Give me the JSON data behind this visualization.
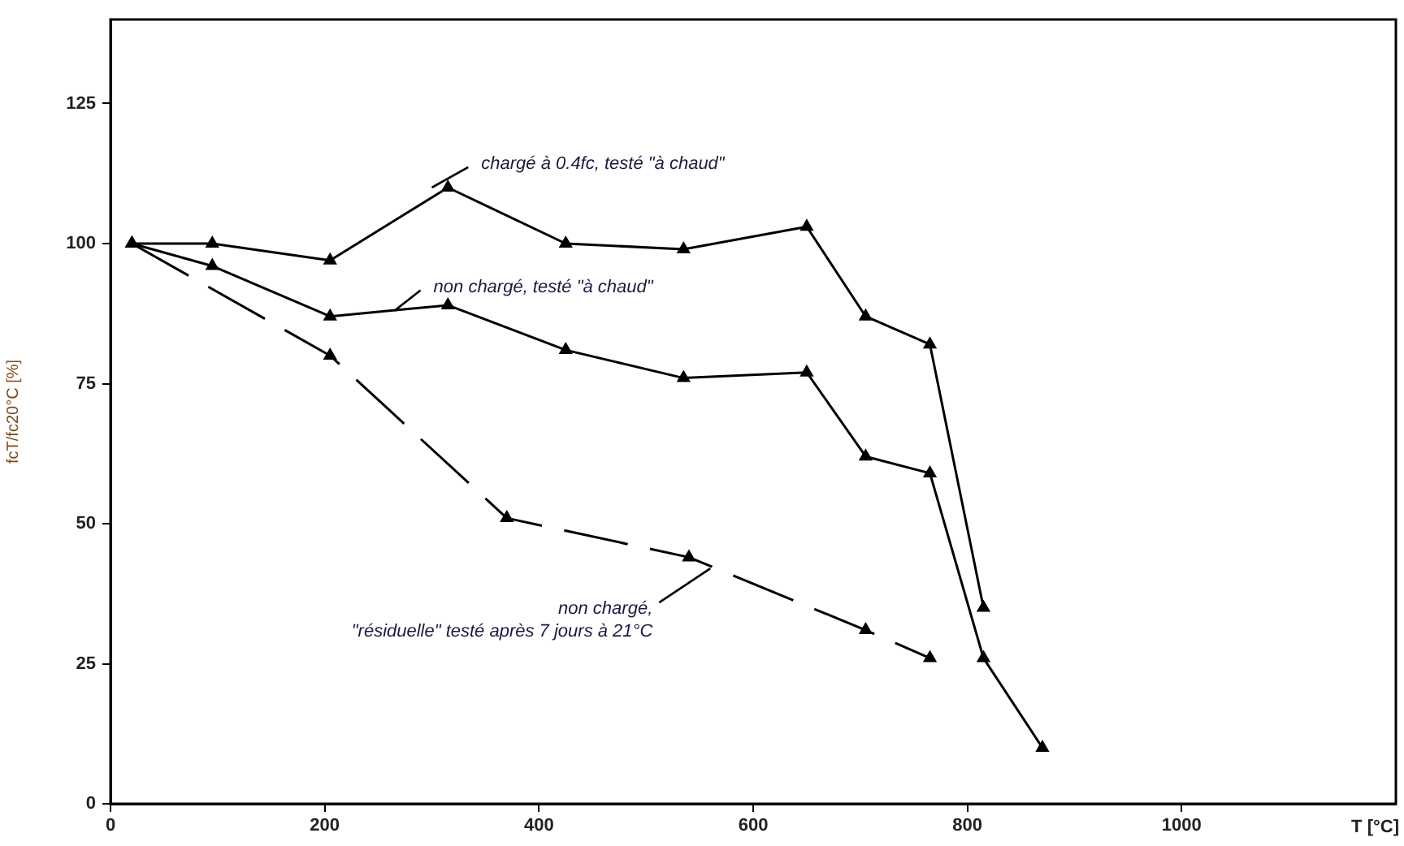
{
  "chart_data": {
    "type": "line",
    "xlabel": "T [°C]",
    "ylabel": "fcT/fc20°C [%]",
    "xlim": [
      0,
      1200
    ],
    "xticks": [
      0,
      200,
      400,
      600,
      800,
      1000
    ],
    "ylim": [
      0,
      140
    ],
    "yticks": [
      0,
      25,
      50,
      75,
      100,
      125
    ],
    "grid": false,
    "legend": false,
    "marker": "triangle",
    "series": [
      {
        "color": "#000000",
        "line_style": "solid",
        "x": [
          20,
          95,
          205,
          315,
          425,
          535,
          650,
          705,
          765,
          815
        ],
        "values": [
          100,
          100,
          97,
          110,
          100,
          99,
          103,
          87,
          82,
          35
        ]
      },
      {
        "color": "#000000",
        "line_style": "solid",
        "x": [
          20,
          95,
          205,
          315,
          425,
          535,
          650,
          705,
          765,
          815,
          870
        ],
        "values": [
          100,
          96,
          87,
          89,
          81,
          76,
          77,
          62,
          59,
          26,
          10
        ]
      },
      {
        "color": "#000000",
        "line_style": "dashed",
        "x": [
          20,
          205,
          370,
          540,
          705,
          765
        ],
        "values": [
          100,
          80,
          51,
          44,
          31,
          26
        ]
      }
    ],
    "annotations": [
      {
        "text": "chargé à 0.4fc, testé \"à chaud\"",
        "x": 300,
        "y": 110
      },
      {
        "text": "non chargé, testé \"à chaud\"",
        "x": 265,
        "y": 88
      },
      {
        "text": "non chargé,\n\"résiduelle\" testé après 7 jours à 21°C",
        "x": 560,
        "y": 42
      }
    ]
  }
}
